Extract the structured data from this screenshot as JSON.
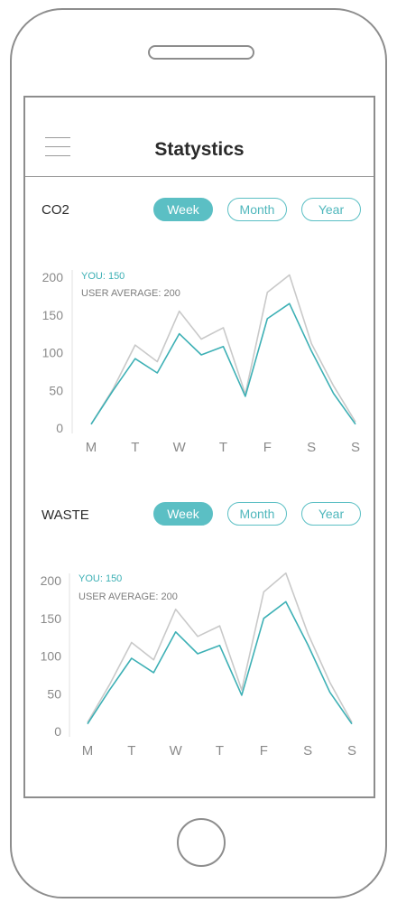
{
  "app": {
    "title": "Statystics"
  },
  "colors": {
    "accent": "#5bbfc4",
    "user_line": "#3db0b5",
    "average_line": "#c9c9c9"
  },
  "icons": {
    "menu": "hamburger-menu-icon"
  },
  "sections": [
    {
      "label": "CO2",
      "tabs": [
        "Week",
        "Month",
        "Year"
      ],
      "active_tab": "Week",
      "legend": {
        "you": "YOU: 150",
        "average": "USER AVERAGE: 200"
      }
    },
    {
      "label": "WASTE",
      "tabs": [
        "Week",
        "Month",
        "Year"
      ],
      "active_tab": "Week",
      "legend": {
        "you": "YOU: 150",
        "average": "USER AVERAGE: 200"
      }
    }
  ],
  "chart_data": [
    {
      "type": "line",
      "categories": [
        "M",
        "T",
        "W",
        "T",
        "F",
        "S",
        "S"
      ],
      "x": [
        0,
        0.5,
        1,
        1.5,
        2,
        2.5,
        3,
        3.5,
        4,
        4.5,
        5,
        5.5,
        6
      ],
      "ylim": [
        0,
        200
      ],
      "yticks": [
        0,
        50,
        100,
        150,
        200
      ],
      "series": [
        {
          "values": [
            5,
            52,
            110,
            88,
            155,
            118,
            133,
            45,
            180,
            203,
            112,
            56,
            8
          ]
        },
        {
          "values": [
            5,
            50,
            92,
            73,
            125,
            97,
            108,
            42,
            145,
            165,
            102,
            46,
            5
          ]
        }
      ]
    },
    {
      "type": "line",
      "categories": [
        "M",
        "T",
        "W",
        "T",
        "F",
        "S",
        "S"
      ],
      "x": [
        0,
        0.5,
        1,
        1.5,
        2,
        2.5,
        3,
        3.5,
        4,
        4.5,
        5,
        5.5,
        6
      ],
      "ylim": [
        0,
        200
      ],
      "yticks": [
        0,
        50,
        100,
        150,
        200
      ],
      "series": [
        {
          "values": [
            12,
            62,
            118,
            95,
            162,
            126,
            140,
            55,
            185,
            210,
            130,
            65,
            12
          ]
        },
        {
          "values": [
            10,
            55,
            97,
            78,
            132,
            103,
            114,
            48,
            150,
            172,
            115,
            52,
            10
          ]
        }
      ]
    }
  ]
}
